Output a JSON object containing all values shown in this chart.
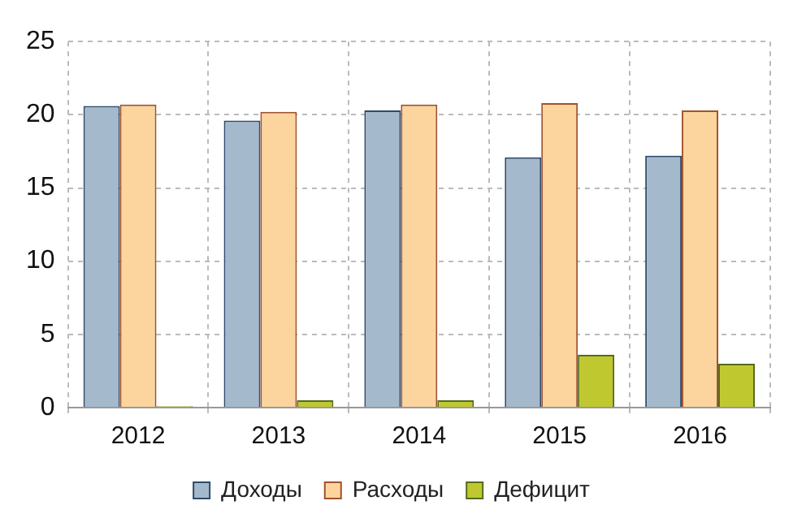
{
  "chart_data": {
    "type": "bar",
    "categories": [
      "2012",
      "2013",
      "2014",
      "2015",
      "2016"
    ],
    "series": [
      {
        "name": "Доходы",
        "color": "#a5b9cd",
        "values": [
          20.6,
          19.6,
          20.3,
          17.1,
          17.2
        ]
      },
      {
        "name": "Расходы",
        "color": "#fcd59e",
        "values": [
          20.7,
          20.2,
          20.7,
          20.8,
          20.3
        ]
      },
      {
        "name": "Дефицит",
        "color": "#c0c830",
        "values": [
          0.1,
          0.5,
          0.5,
          3.6,
          3.0
        ]
      }
    ],
    "ylim": [
      0,
      25
    ],
    "yticks": [
      0,
      5,
      10,
      15,
      20,
      25
    ],
    "grid": true,
    "legend": "bottom"
  }
}
